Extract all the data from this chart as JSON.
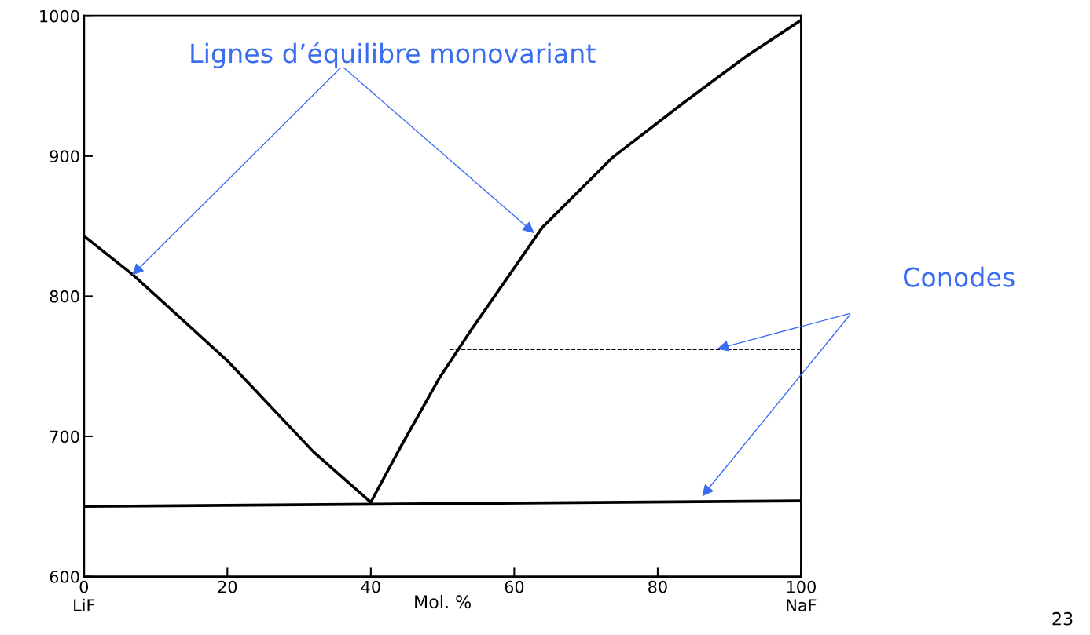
{
  "chart_data": {
    "type": "line",
    "xlabel": "Mol. %",
    "xlim": [
      0,
      100
    ],
    "ylim": [
      600,
      1000
    ],
    "xticks": [
      {
        "value": 0,
        "label": "0\nLiF"
      },
      20,
      40,
      60,
      80,
      {
        "value": 100,
        "label": "100\nNaF"
      }
    ],
    "yticks": [
      600,
      700,
      800,
      900,
      1000
    ],
    "grid": false,
    "legend": false,
    "marker": "none",
    "series": [
      {
        "x": [
          0,
          6.9,
          20,
          32,
          40
        ],
        "values": [
          843,
          815,
          754,
          689,
          653
        ],
        "color": "#000000",
        "line_style": "solid"
      },
      {
        "x": [
          40,
          44.1,
          49.6,
          54,
          63.9,
          73.7,
          83.6,
          92.3,
          100
        ],
        "values": [
          653,
          692,
          742,
          776,
          849,
          899,
          938,
          971,
          997
        ],
        "color": "#000000",
        "line_style": "solid"
      },
      {
        "x": [
          0,
          100
        ],
        "values": [
          650,
          654
        ],
        "color": "#000000",
        "line_style": "solid"
      },
      {
        "x": [
          51,
          100
        ],
        "values": [
          762,
          762
        ],
        "color": "#000000",
        "line_style": "dashed"
      }
    ],
    "annotations": [
      "Lignes d’équilibre monovariant",
      "Conodes",
      "23"
    ]
  }
}
